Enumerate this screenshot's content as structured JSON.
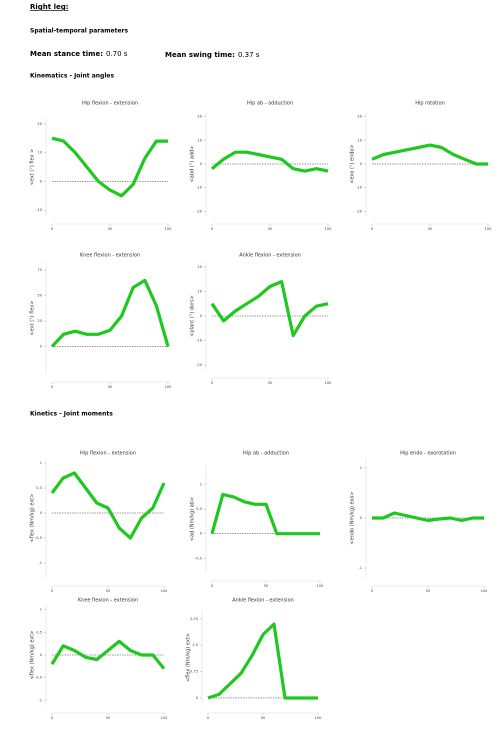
{
  "header": {
    "leg": "Right leg:",
    "section": "Spatial-temporal  parameters",
    "stance_label": "Mean stance time:",
    "stance_value": "0.70 s",
    "swing_label": "Mean swing time:",
    "swing_value": "0.37 s",
    "kinematics": "Kinematics  - Joint angles",
    "kinetics": "Kinetics  - Joint moments"
  },
  "chart_data": [
    {
      "type": "line",
      "title": "Hip flexion - extension",
      "ylabel": "<ext   (°)   flex >",
      "x": [
        0,
        10,
        20,
        30,
        40,
        50,
        60,
        70,
        80,
        90,
        100
      ],
      "xlim": [
        0,
        100
      ],
      "xticks": [
        0,
        50,
        100
      ],
      "ylim": [
        -12,
        22
      ],
      "yticks": [
        -10,
        0,
        10,
        20
      ],
      "series": [
        {
          "name": "Hip flexion - extension",
          "color": "#1ec81e",
          "values": [
            15,
            14,
            10,
            5,
            0,
            -3,
            -5,
            -1,
            8,
            14,
            14
          ]
        }
      ]
    },
    {
      "type": "line",
      "title": "Hip ab - adduction",
      "ylabel": "<abd   (°)   add>",
      "x": [
        0,
        10,
        20,
        30,
        40,
        50,
        60,
        70,
        80,
        90,
        100
      ],
      "xlim": [
        0,
        100
      ],
      "xticks": [
        0,
        50,
        100
      ],
      "ylim": [
        -22,
        22
      ],
      "yticks": [
        -20,
        -10,
        0,
        10,
        20
      ],
      "series": [
        {
          "name": "Hip ab - adduction",
          "color": "#1ec81e",
          "values": [
            -2,
            2,
            5,
            5,
            4,
            3,
            2,
            -2,
            -3,
            -2,
            -3
          ]
        }
      ]
    },
    {
      "type": "line",
      "title": "Hip rotation",
      "ylabel": "<exo   (°)   endo>",
      "x": [
        0,
        10,
        20,
        30,
        40,
        50,
        60,
        70,
        80,
        90,
        100
      ],
      "xlim": [
        0,
        100
      ],
      "xticks": [
        0,
        50,
        100
      ],
      "ylim": [
        -22,
        22
      ],
      "yticks": [
        -20,
        -10,
        0,
        10,
        20
      ],
      "series": [
        {
          "name": "Hip rotation",
          "color": "#1ec81e",
          "values": [
            2,
            4,
            5,
            6,
            7,
            8,
            7,
            4,
            2,
            0,
            0
          ]
        }
      ]
    },
    {
      "type": "line",
      "title": "Knee flexion - extension",
      "ylabel": "<ext   (°)   flex>",
      "x": [
        0,
        10,
        20,
        30,
        40,
        50,
        60,
        70,
        80,
        90,
        100
      ],
      "xlim": [
        0,
        100
      ],
      "xticks": [
        0,
        50,
        100
      ],
      "ylim": [
        -27,
        83
      ],
      "yticks": [
        0,
        25,
        50,
        75
      ],
      "series": [
        {
          "name": "Knee flexion - extension",
          "color": "#1ec81e",
          "values": [
            0,
            12,
            15,
            12,
            12,
            16,
            30,
            58,
            65,
            40,
            0
          ]
        }
      ]
    },
    {
      "type": "line",
      "title": "Ankle flexion - extension",
      "ylabel": "<plant   (°)   dors>",
      "x": [
        0,
        10,
        20,
        30,
        40,
        50,
        60,
        70,
        80,
        90,
        100
      ],
      "xlim": [
        0,
        100
      ],
      "xticks": [
        0,
        50,
        100
      ],
      "ylim": [
        -22,
        22
      ],
      "yticks": [
        -20,
        -10,
        0,
        10,
        20
      ],
      "series": [
        {
          "name": "Ankle flexion - extension",
          "color": "#1ec81e",
          "values": [
            5,
            -2,
            2,
            5,
            8,
            12,
            14,
            -8,
            0,
            4,
            5
          ]
        }
      ]
    },
    {
      "type": "line",
      "title": "Hip flexion - extension",
      "ylabel": "<flex   (Nm/kg)   ext>",
      "x": [
        0,
        10,
        20,
        30,
        40,
        50,
        60,
        70,
        80,
        90,
        100
      ],
      "xlim": [
        0,
        100
      ],
      "xticks": [
        0,
        50,
        100
      ],
      "ylim": [
        -1.3,
        1.1
      ],
      "yticks": [
        -1,
        -0.5,
        0,
        0.5,
        1
      ],
      "series": [
        {
          "name": "Hip flexion - extension",
          "color": "#1ec81e",
          "values": [
            0.4,
            0.7,
            0.8,
            0.5,
            0.2,
            0.1,
            -0.3,
            -0.5,
            -0.1,
            0.1,
            0.6
          ]
        }
      ]
    },
    {
      "type": "line",
      "title": "Hip ab - adduction",
      "ylabel": "<ad   (Nm/kg)   ab>",
      "x": [
        0,
        10,
        20,
        30,
        40,
        50,
        60,
        70,
        80,
        90,
        100
      ],
      "xlim": [
        0,
        100
      ],
      "xticks": [
        0,
        50,
        100
      ],
      "ylim": [
        -0.8,
        1.4
      ],
      "yticks": [
        -0.5,
        0,
        0.5,
        1
      ],
      "series": [
        {
          "name": "Hip ab - adduction",
          "color": "#1ec81e",
          "values": [
            0,
            0.8,
            0.75,
            0.65,
            0.6,
            0.6,
            0,
            0,
            0,
            0,
            0
          ]
        }
      ]
    },
    {
      "type": "line",
      "title": "Hip endo - exorotation",
      "ylabel": "<endo   (Nm/kg)   exo>",
      "x": [
        0,
        10,
        20,
        30,
        40,
        50,
        60,
        70,
        80,
        90,
        100
      ],
      "xlim": [
        0,
        100
      ],
      "xticks": [
        0,
        50,
        100
      ],
      "ylim": [
        -1.2,
        1.2
      ],
      "yticks": [
        -1,
        0,
        1
      ],
      "series": [
        {
          "name": "Hip endo - exorotation",
          "color": "#1ec81e",
          "values": [
            0,
            0,
            0.1,
            0.05,
            0,
            -0.05,
            -0.02,
            0,
            -0.05,
            0,
            0
          ]
        }
      ]
    },
    {
      "type": "line",
      "title": "Knee flexion - extension",
      "ylabel": "<flex   (Nm/kg)   ext>",
      "x": [
        0,
        10,
        20,
        30,
        40,
        50,
        60,
        70,
        80,
        90,
        100
      ],
      "xlim": [
        0,
        100
      ],
      "xticks": [
        0,
        50,
        100
      ],
      "ylim": [
        -1.1,
        1.1
      ],
      "yticks": [
        -1,
        -0.5,
        0,
        0.5,
        1
      ],
      "series": [
        {
          "name": "Knee flexion - extension",
          "color": "#1ec81e",
          "values": [
            -0.2,
            0.2,
            0.1,
            -0.05,
            -0.1,
            0.1,
            0.3,
            0.1,
            0,
            0,
            -0.3
          ]
        }
      ]
    },
    {
      "type": "line",
      "title": "Ankle flexion - extension",
      "ylabel": "<flex   (Nm/kg)   ext>",
      "x": [
        0,
        10,
        20,
        30,
        40,
        50,
        60,
        70,
        80,
        90,
        100
      ],
      "xlim": [
        0,
        100
      ],
      "xticks": [
        0,
        50,
        100
      ],
      "ylim": [
        -0.2,
        2.5
      ],
      "yticks": [
        0,
        0.75,
        1.5,
        2.25
      ],
      "series": [
        {
          "name": "Ankle flexion - extension",
          "color": "#1ec81e",
          "values": [
            0,
            0.1,
            0.4,
            0.7,
            1.2,
            1.8,
            2.1,
            0,
            0,
            0,
            0
          ]
        }
      ]
    }
  ]
}
